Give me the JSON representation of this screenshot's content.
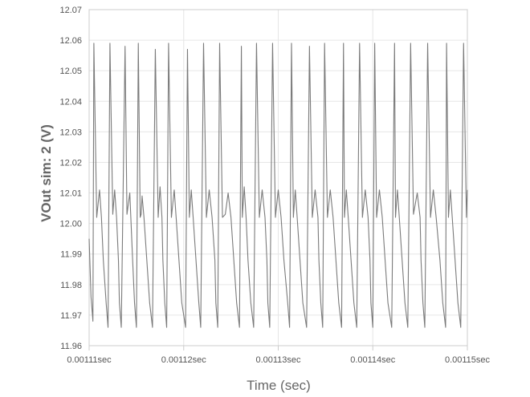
{
  "chart_data": {
    "type": "line",
    "title": "",
    "xlabel": "Time (sec)",
    "ylabel": "VOut sim: 2 (V)",
    "xlim": [
      0.00111,
      0.00115
    ],
    "ylim": [
      11.96,
      12.07
    ],
    "x_ticks": [
      {
        "value": 0.00111,
        "label": "0.00111sec"
      },
      {
        "value": 0.00112,
        "label": "0.00112sec"
      },
      {
        "value": 0.00113,
        "label": "0.00113sec"
      },
      {
        "value": 0.00114,
        "label": "0.00114sec"
      },
      {
        "value": 0.00115,
        "label": "0.00115sec"
      }
    ],
    "y_ticks": [
      {
        "value": 11.96,
        "label": "11.96"
      },
      {
        "value": 11.97,
        "label": "11.97"
      },
      {
        "value": 11.98,
        "label": "11.98"
      },
      {
        "value": 11.99,
        "label": "11.99"
      },
      {
        "value": 12.0,
        "label": "12.00"
      },
      {
        "value": 12.01,
        "label": "12.01"
      },
      {
        "value": 12.02,
        "label": "12.02"
      },
      {
        "value": 12.03,
        "label": "12.03"
      },
      {
        "value": 12.04,
        "label": "12.04"
      },
      {
        "value": 12.05,
        "label": "12.05"
      },
      {
        "value": 12.06,
        "label": "12.06"
      },
      {
        "value": 12.07,
        "label": "12.07"
      }
    ],
    "grid": true,
    "legend": "none",
    "line_color": "#7a7a7a",
    "grid_color": "#e6e6e6",
    "axis_color": "#cccccc",
    "series": [
      {
        "x": [
          0.00111,
          0.0011102,
          0.0011104,
          0.0011105,
          0.0011108,
          0.0011111,
          0.0011113,
          0.0011115,
          0.0011118,
          0.001112,
          0.0011122,
          0.0011125,
          0.0011127,
          0.0011129,
          0.0011131,
          0.0011132,
          0.0011134,
          0.0011138,
          0.001114,
          0.0011143,
          0.0011146,
          0.0011148,
          0.001115,
          0.0011152,
          0.0011154,
          0.0011155,
          0.0011156,
          0.0011158,
          0.0011161,
          0.0011164,
          0.0011167,
          0.001117,
          0.0011173,
          0.0011175,
          0.0011177,
          0.0011178,
          0.001118,
          0.0011182,
          0.0011184,
          0.0011187,
          0.001119,
          0.0011192,
          0.0011195,
          0.0011198,
          0.0011202,
          0.0011204,
          0.0011206,
          0.0011208,
          0.001121,
          0.0011213,
          0.0011216,
          0.0011218,
          0.0011221,
          0.0011224,
          0.0011227,
          0.001123,
          0.0011233,
          0.0011234,
          0.0011236,
          0.0011238,
          0.0011241,
          0.0011244,
          0.0011247,
          0.001125,
          0.0011253,
          0.0011256,
          0.0011259,
          0.0011261,
          0.0011262,
          0.0011264,
          0.0011266,
          0.0011268,
          0.0011271,
          0.0011274,
          0.0011277,
          0.001128,
          0.0011283,
          0.0011286,
          0.0011288,
          0.0011289,
          0.0011291,
          0.0011294,
          0.0011297,
          0.00113,
          0.0011303,
          0.0011306,
          0.001131,
          0.0011312,
          0.0011314,
          0.0011316,
          0.0011318,
          0.001132,
          0.0011323,
          0.0011326,
          0.001133,
          0.0011333,
          0.0011336,
          0.0011339,
          0.0011342,
          0.0011343,
          0.0011345,
          0.0011347,
          0.0011349,
          0.0011352,
          0.0011355,
          0.0011358,
          0.0011361,
          0.0011364,
          0.0011367,
          0.0011369,
          0.001137,
          0.0011372,
          0.0011374,
          0.0011377,
          0.001138,
          0.0011383,
          0.0011386,
          0.0011389,
          0.0011392,
          0.0011395,
          0.0011397,
          0.0011398,
          0.00114,
          0.0011402,
          0.0011404,
          0.0011407,
          0.001141,
          0.0011413,
          0.0011416,
          0.001142,
          0.0011423,
          0.0011424,
          0.0011426,
          0.0011428,
          0.0011431,
          0.0011434,
          0.0011437,
          0.001144,
          0.0011443,
          0.0011447,
          0.001145,
          0.0011451,
          0.0011453,
          0.0011455,
          0.0011458,
          0.0011461,
          0.0011464,
          0.0011467,
          0.0011471,
          0.0011474,
          0.0011477,
          0.0011478,
          0.001148,
          0.0011482,
          0.0011484,
          0.0011487,
          0.001149,
          0.0011493,
          0.0011496,
          0.0011499,
          0.00115
        ],
        "y": [
          11.995,
          11.976,
          11.968,
          12.059,
          12.002,
          12.011,
          12.002,
          11.988,
          11.974,
          11.966,
          12.059,
          12.003,
          12.011,
          12.002,
          11.988,
          11.974,
          11.966,
          12.058,
          12.003,
          12.01,
          11.988,
          11.974,
          11.966,
          12.059,
          12.002,
          12.003,
          12.009,
          12.002,
          11.988,
          11.974,
          11.966,
          12.057,
          12.002,
          12.012,
          12.002,
          11.988,
          11.974,
          11.966,
          12.059,
          12.002,
          12.011,
          12.002,
          11.988,
          11.974,
          11.966,
          12.057,
          12.002,
          12.011,
          12.002,
          11.988,
          11.974,
          11.966,
          12.059,
          12.002,
          12.011,
          12.002,
          11.988,
          11.974,
          11.966,
          12.059,
          12.002,
          12.003,
          12.01,
          12.002,
          11.988,
          11.974,
          11.966,
          12.058,
          12.002,
          12.012,
          12.002,
          11.988,
          11.974,
          11.966,
          12.059,
          12.002,
          12.011,
          12.002,
          11.988,
          11.974,
          11.966,
          12.059,
          12.002,
          12.011,
          12.002,
          11.988,
          11.974,
          11.966,
          12.059,
          12.002,
          12.011,
          12.002,
          11.988,
          11.974,
          11.966,
          12.058,
          12.002,
          12.011,
          12.002,
          11.988,
          11.974,
          11.966,
          12.059,
          12.002,
          12.011,
          12.002,
          11.988,
          11.974,
          11.966,
          12.059,
          12.002,
          12.011,
          12.002,
          11.988,
          11.974,
          11.966,
          12.059,
          12.002,
          12.011,
          12.002,
          11.988,
          11.974,
          11.966,
          12.059,
          12.002,
          12.011,
          12.002,
          11.988,
          11.974,
          11.966,
          12.059,
          12.002,
          12.011,
          12.002,
          11.988,
          11.974,
          11.966,
          12.059,
          12.003,
          12.01,
          12.002,
          11.988,
          11.974,
          11.966,
          12.059,
          12.002,
          12.011,
          12.002,
          11.988,
          11.974,
          11.966,
          12.059,
          12.002,
          12.011,
          12.002,
          11.988,
          11.974,
          11.966,
          12.059,
          12.002,
          12.011
        ]
      }
    ]
  }
}
